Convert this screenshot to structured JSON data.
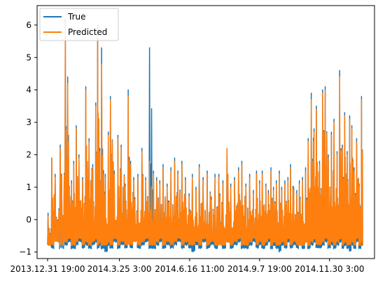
{
  "chart_data": {
    "type": "line",
    "title": "",
    "xlabel": "",
    "ylabel": "",
    "xlim": [
      0,
      1000
    ],
    "ylim": [
      -1.2,
      6.6
    ],
    "grid": false,
    "legend_position": "top-left",
    "x_ticks": [
      {
        "value": 0,
        "label": "2013.12.31 19:00"
      },
      {
        "value": 228,
        "label": "2014.3.25 3:00"
      },
      {
        "value": 451,
        "label": "2014.6.16 11:00"
      },
      {
        "value": 673,
        "label": "2014.9.7 19:00"
      },
      {
        "value": 895,
        "label": "2014.11.30 3:00"
      }
    ],
    "y_ticks": [
      {
        "value": -1,
        "label": "−1"
      },
      {
        "value": 0,
        "label": "0"
      },
      {
        "value": 1,
        "label": "1"
      },
      {
        "value": 2,
        "label": "2"
      },
      {
        "value": 3,
        "label": "3"
      },
      {
        "value": 4,
        "label": "4"
      },
      {
        "value": 5,
        "label": "5"
      },
      {
        "value": 6,
        "label": "6"
      }
    ],
    "series": [
      {
        "name": "True",
        "color": "#1f77b4"
      },
      {
        "name": "Predicted",
        "color": "#ff7f0e"
      }
    ],
    "peaks": {
      "x": [
        0,
        12,
        22,
        38,
        55,
        65,
        75,
        82,
        90,
        98,
        110,
        120,
        130,
        142,
        152,
        158,
        165,
        170,
        182,
        192,
        198,
        210,
        222,
        232,
        245,
        255,
        262,
        272,
        285,
        298,
        310,
        322,
        335,
        345,
        355,
        365,
        378,
        390,
        402,
        412,
        425,
        436,
        448,
        458,
        470,
        480,
        492,
        505,
        518,
        530,
        542,
        555,
        568,
        580,
        592,
        605,
        615,
        628,
        640,
        652,
        662,
        672,
        680,
        692,
        700,
        708,
        716,
        725,
        735,
        742,
        752,
        762,
        770,
        780,
        790,
        798,
        808,
        818,
        826,
        836,
        845,
        852,
        862,
        872,
        880,
        890,
        900,
        908,
        918,
        926,
        935,
        942,
        950,
        958,
        965,
        972,
        980,
        988,
        996
      ],
      "true": [
        0.2,
        1.9,
        1.4,
        2.3,
        6.2,
        2.6,
        1.2,
        1.8,
        2.9,
        2.0,
        1.3,
        4.1,
        2.5,
        1.7,
        3.6,
        6.0,
        2.2,
        5.3,
        1.4,
        2.7,
        3.8,
        1.5,
        2.6,
        2.3,
        1.1,
        4.0,
        1.8,
        1.3,
        1.4,
        2.2,
        1.3,
        5.3,
        1.5,
        1.3,
        1.2,
        1.7,
        1.1,
        1.6,
        1.9,
        1.5,
        1.8,
        1.3,
        0.8,
        1.4,
        1.0,
        1.7,
        1.3,
        1.5,
        0.7,
        1.4,
        1.4,
        1.2,
        2.2,
        1.1,
        1.3,
        1.6,
        1.8,
        1.1,
        1.4,
        0.9,
        1.5,
        1.2,
        1.5,
        1.1,
        0.9,
        1.6,
        1.0,
        1.2,
        1.5,
        1.0,
        1.2,
        1.3,
        1.7,
        1.0,
        0.9,
        1.2,
        1.3,
        1.6,
        2.5,
        3.9,
        2.8,
        3.5,
        1.8,
        4.0,
        4.1,
        2.0,
        2.7,
        3.1,
        2.1,
        4.6,
        2.3,
        3.3,
        2.1,
        3.2,
        2.9,
        1.6,
        2.5,
        1.1,
        3.8
      ],
      "predicted": [
        0.1,
        1.9,
        1.3,
        2.2,
        5.9,
        2.4,
        1.1,
        1.7,
        2.8,
        1.9,
        1.2,
        4.0,
        2.4,
        1.6,
        3.5,
        5.9,
        2.1,
        4.8,
        1.3,
        2.6,
        3.7,
        1.4,
        2.5,
        2.2,
        1.0,
        3.8,
        1.7,
        1.2,
        1.3,
        2.1,
        1.2,
        1.8,
        1.4,
        1.2,
        1.1,
        1.6,
        1.0,
        1.5,
        1.8,
        1.4,
        1.7,
        1.2,
        0.7,
        1.3,
        0.9,
        1.6,
        1.2,
        1.4,
        0.6,
        1.3,
        1.3,
        1.1,
        2.2,
        1.0,
        1.2,
        1.5,
        1.7,
        1.0,
        1.3,
        0.8,
        1.4,
        1.1,
        1.4,
        1.0,
        0.8,
        1.5,
        0.9,
        1.1,
        1.4,
        0.9,
        1.1,
        1.2,
        1.6,
        0.9,
        0.8,
        1.1,
        1.2,
        1.5,
        2.4,
        3.7,
        2.7,
        3.4,
        1.7,
        3.9,
        4.0,
        1.9,
        2.6,
        3.0,
        2.0,
        4.4,
        2.2,
        3.2,
        2.0,
        3.1,
        2.8,
        1.5,
        2.4,
        1.0,
        3.7
      ]
    },
    "troughs": {
      "true": [
        -0.8,
        -0.9,
        -0.7,
        -0.9,
        -0.8,
        -0.7,
        -0.9,
        -0.9,
        -0.8,
        -0.7,
        -0.9,
        -0.8,
        -0.9,
        -0.8,
        -0.7,
        -0.9,
        -0.8,
        -0.9,
        -1.0,
        -0.8,
        -0.9,
        -0.7,
        -0.9,
        -0.8,
        -0.9
      ],
      "predicted": [
        -0.8,
        -0.8,
        -0.7,
        -0.8,
        -0.7,
        -0.6,
        -0.8,
        -0.8,
        -0.7,
        -0.6,
        -0.8,
        -0.7,
        -0.8,
        -0.7,
        -0.6,
        -0.8,
        -0.7,
        -0.8,
        -0.8,
        -0.7,
        -0.8,
        -0.6,
        -0.8,
        -0.7,
        -0.8
      ]
    }
  }
}
